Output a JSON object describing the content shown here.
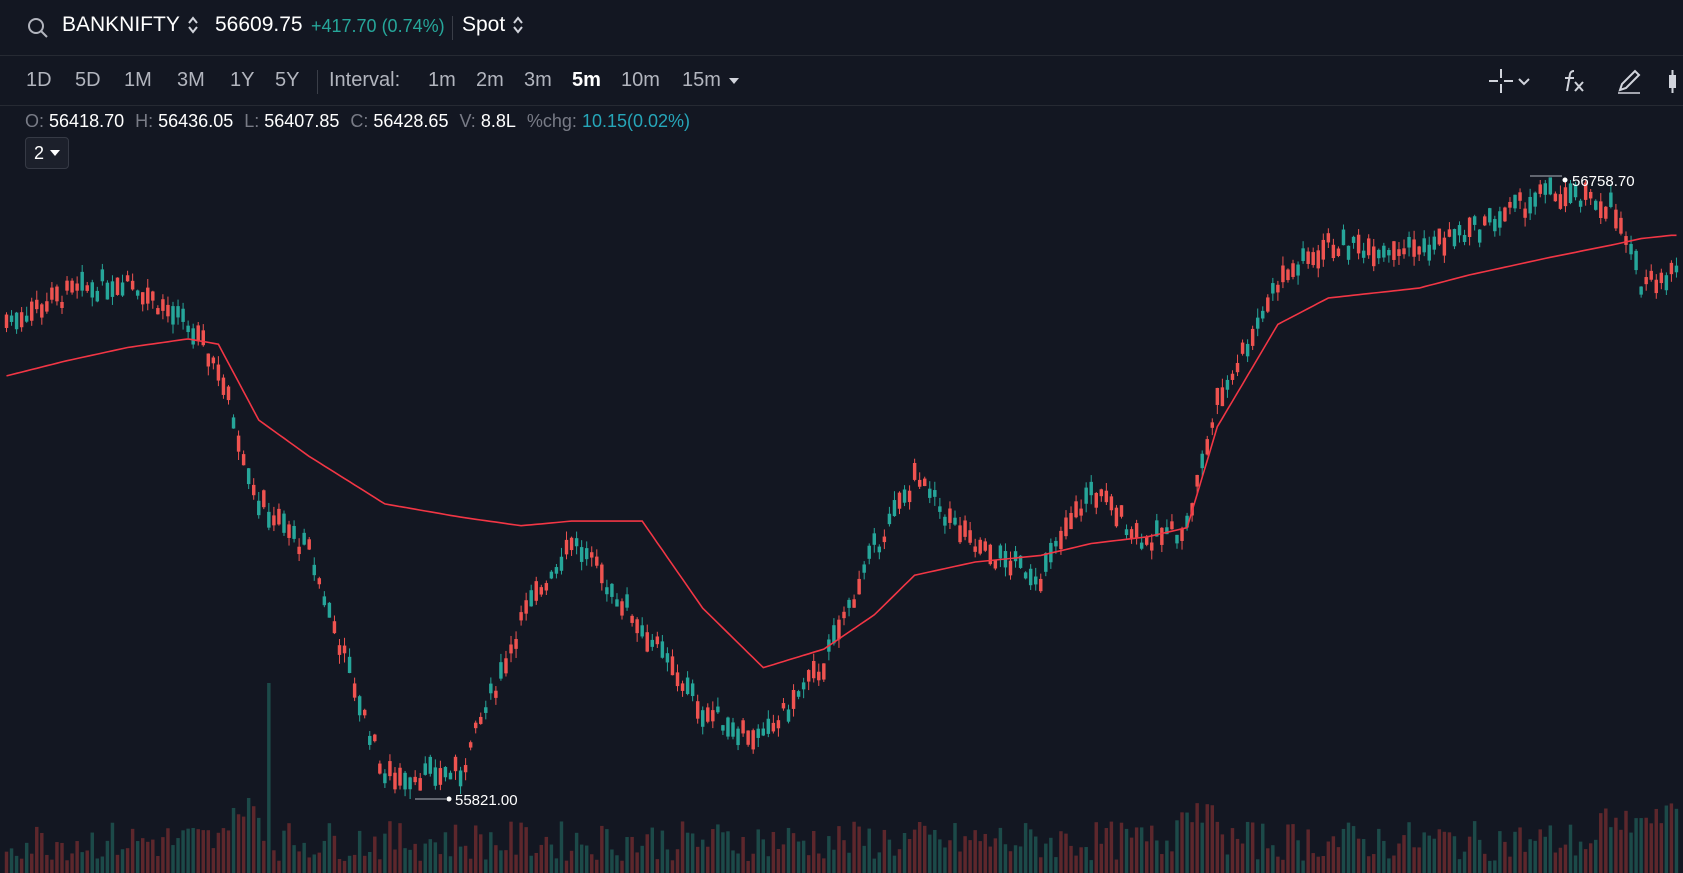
{
  "header": {
    "symbol": "BANKNIFTY",
    "price": "56609.75",
    "change": "+417.70 (0.74%)",
    "market": "Spot"
  },
  "toolbar": {
    "ranges": [
      "1D",
      "5D",
      "1M",
      "3M",
      "1Y",
      "5Y"
    ],
    "interval_label": "Interval:",
    "intervals": [
      "1m",
      "2m",
      "3m",
      "5m",
      "10m",
      "15m"
    ],
    "active_interval": "5m"
  },
  "legend": {
    "o_label": "O:",
    "o": "56418.70",
    "h_label": "H:",
    "h": "56436.05",
    "l_label": "L:",
    "l": "56407.85",
    "c_label": "C:",
    "c": "56428.65",
    "v_label": "V:",
    "v": "8.8L",
    "chg_label": "%chg:",
    "chg": "10.15(0.02%)",
    "study_count": "2"
  },
  "colors": {
    "background": "#131722",
    "up": "#26a69a",
    "down": "#ef5350",
    "vwap": "#f23645"
  },
  "chart_data": {
    "type": "candlestick",
    "price_range": [
      55780,
      56800
    ],
    "high_marker": "56758.70",
    "low_marker": "55821.00",
    "series": [
      {
        "type": "candlestick"
      },
      {
        "type": "line"
      },
      {
        "type": "volume"
      }
    ],
    "anchors": [
      {
        "i": 0,
        "p": 56545,
        "v": 56462
      },
      {
        "i": 12,
        "p": 56585,
        "v": 56485
      },
      {
        "i": 24,
        "p": 56610,
        "v": 56505
      },
      {
        "i": 36,
        "p": 56535,
        "v": 56518
      },
      {
        "i": 42,
        "p": 56475,
        "v": 56510
      },
      {
        "i": 50,
        "p": 56270,
        "v": 56395
      },
      {
        "i": 60,
        "p": 56195,
        "v": 56340
      },
      {
        "i": 75,
        "p": 55855,
        "v": 56268
      },
      {
        "i": 90,
        "p": 55860,
        "v": 56248
      },
      {
        "i": 102,
        "p": 56090,
        "v": 56235
      },
      {
        "i": 112,
        "p": 56215,
        "v": 56242
      },
      {
        "i": 126,
        "p": 56080,
        "v": 56242
      },
      {
        "i": 138,
        "p": 55955,
        "v": 56110
      },
      {
        "i": 150,
        "p": 55910,
        "v": 56020
      },
      {
        "i": 162,
        "p": 56025,
        "v": 56048
      },
      {
        "i": 172,
        "p": 56200,
        "v": 56100
      },
      {
        "i": 180,
        "p": 56305,
        "v": 56160
      },
      {
        "i": 192,
        "p": 56200,
        "v": 56180
      },
      {
        "i": 205,
        "p": 56160,
        "v": 56190
      },
      {
        "i": 215,
        "p": 56290,
        "v": 56208
      },
      {
        "i": 226,
        "p": 56210,
        "v": 56218
      },
      {
        "i": 234,
        "p": 56235,
        "v": 56232
      },
      {
        "i": 240,
        "p": 56420,
        "v": 56385
      },
      {
        "i": 252,
        "p": 56605,
        "v": 56540
      },
      {
        "i": 262,
        "p": 56660,
        "v": 56580
      },
      {
        "i": 280,
        "p": 56655,
        "v": 56595
      },
      {
        "i": 290,
        "p": 56680,
        "v": 56615
      },
      {
        "i": 305,
        "p": 56738,
        "v": 56640
      },
      {
        "i": 318,
        "p": 56720,
        "v": 56660
      },
      {
        "i": 324,
        "p": 56605,
        "v": 56670
      },
      {
        "i": 330,
        "p": 56618,
        "v": 56675
      }
    ]
  }
}
